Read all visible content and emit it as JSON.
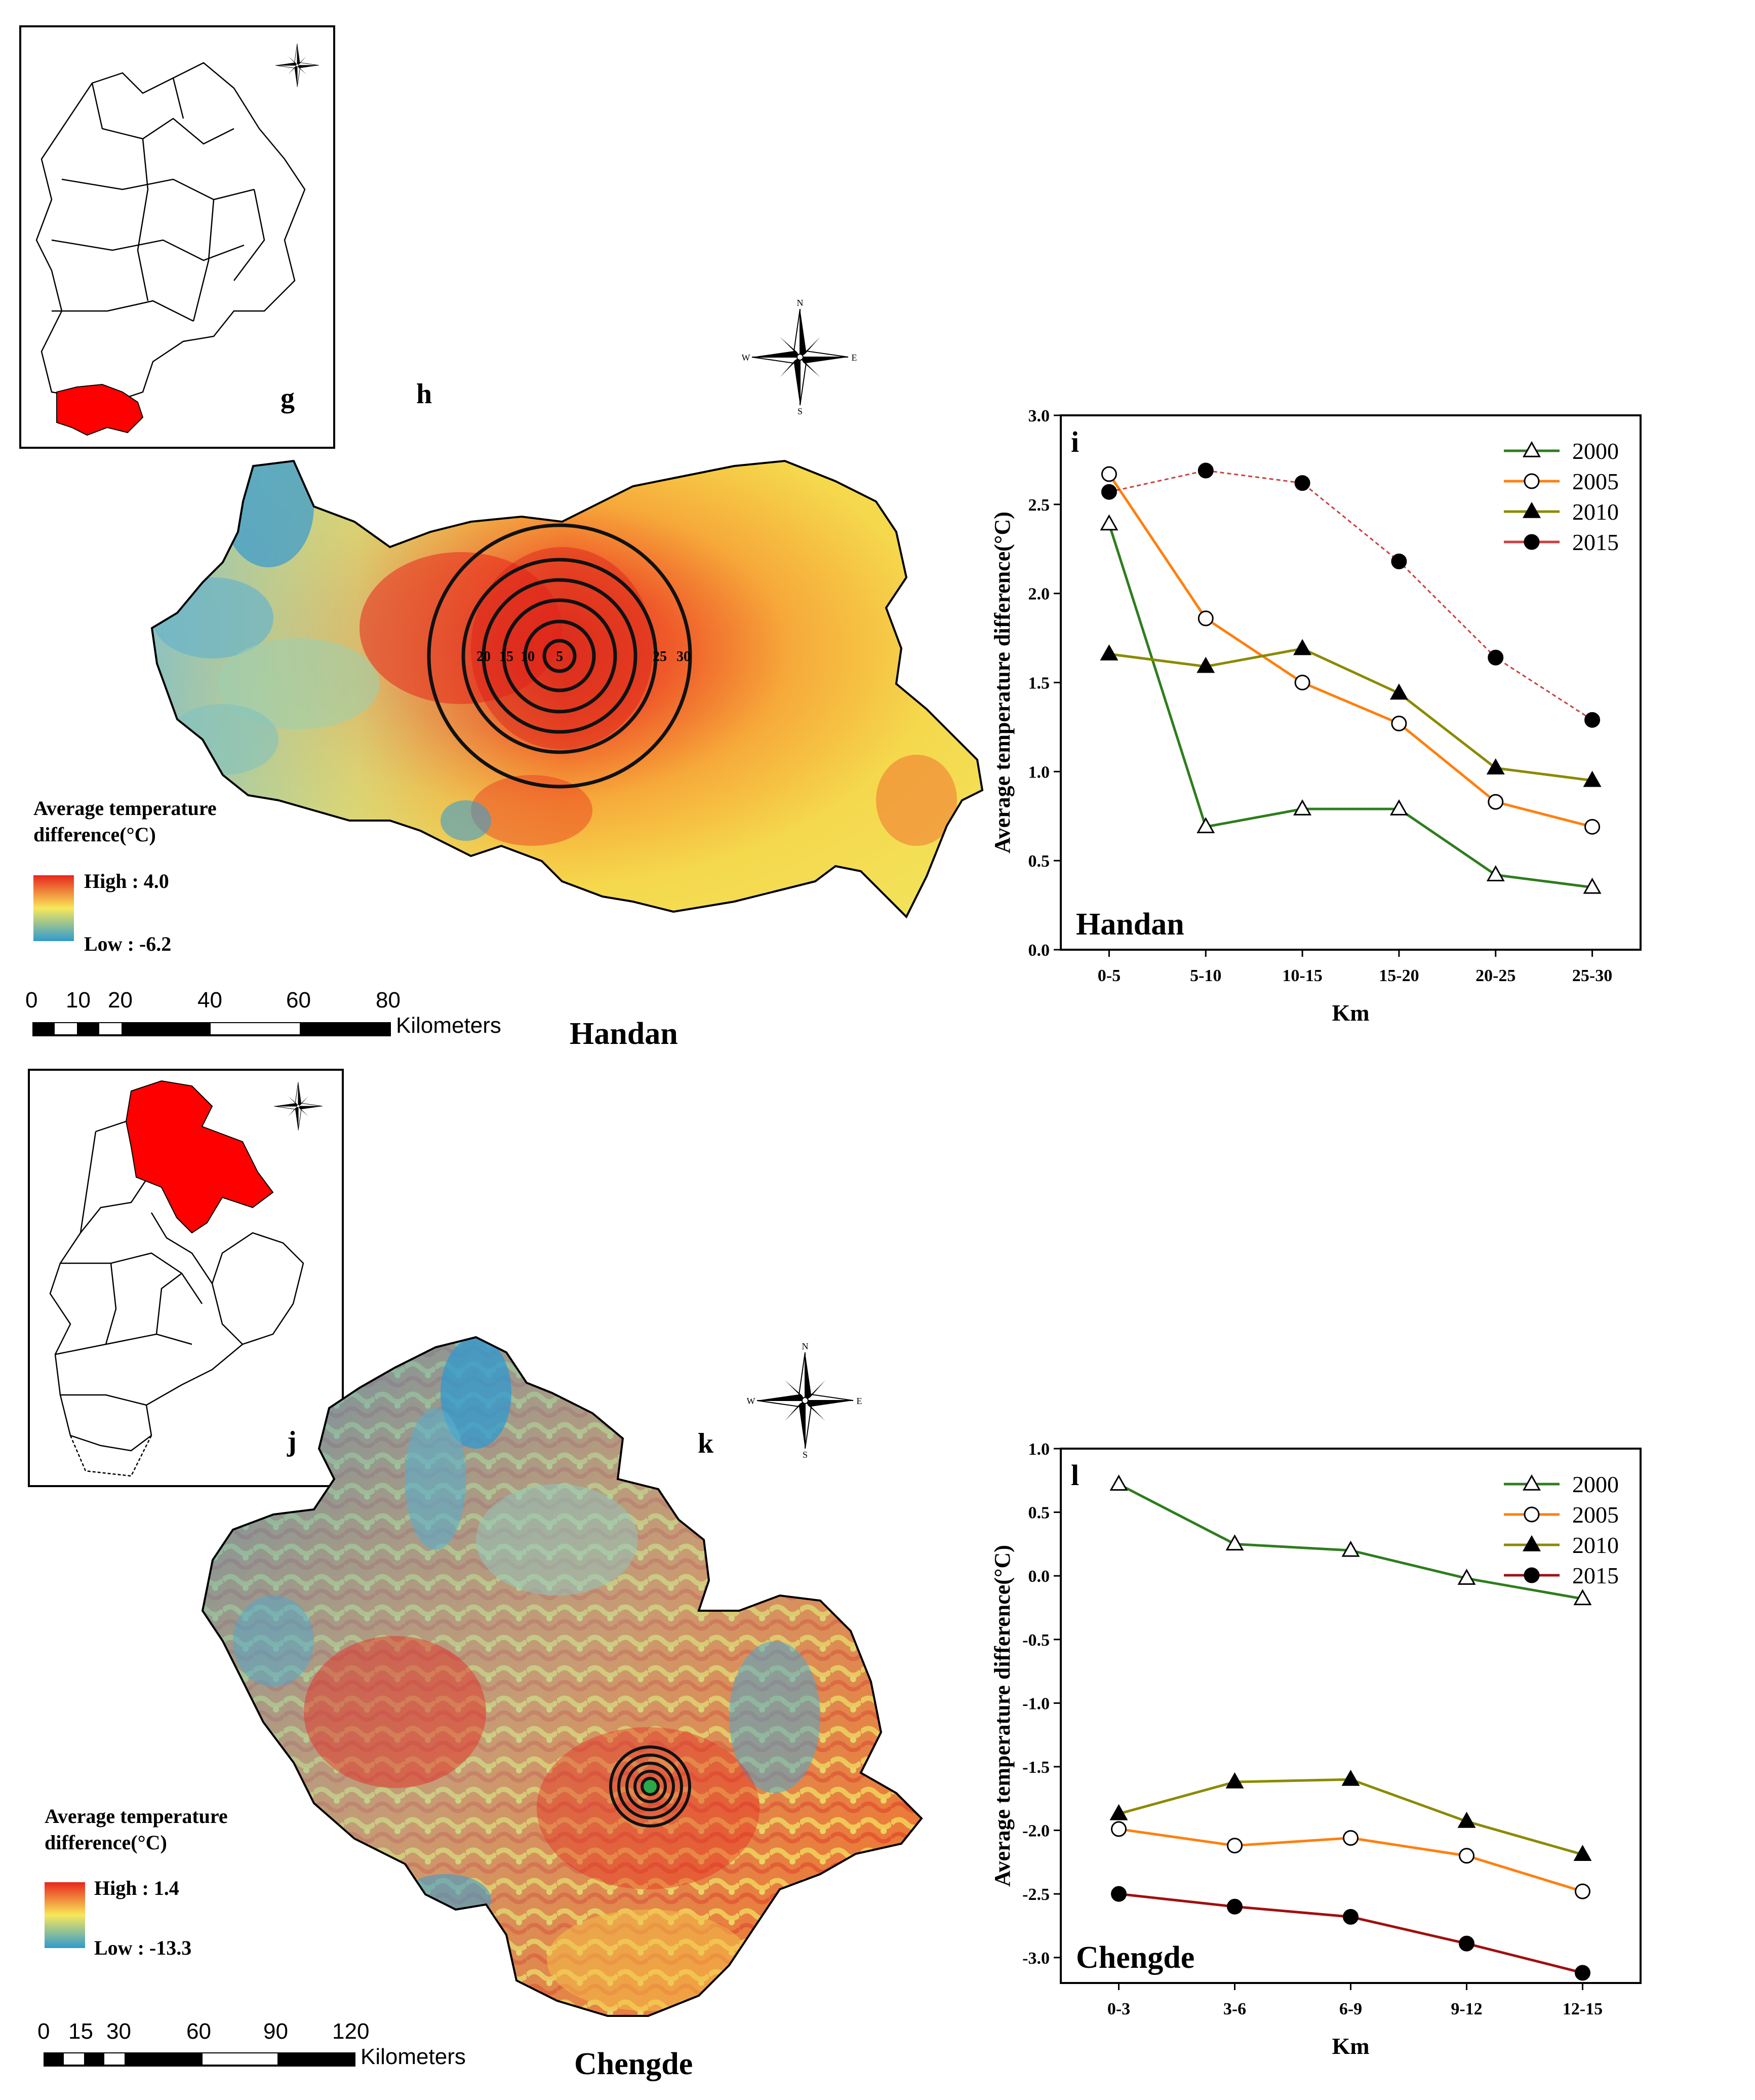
{
  "colors": {
    "high": "#e8261c",
    "mid": "#f7e85a",
    "low": "#2f9ad0",
    "province_highlight": "#ff0000",
    "s2000": "#2e7d1e",
    "s2005": "#ff7f0e",
    "s2010": "#8a8a00",
    "s2015_handan": "#c94040",
    "s2015_chengde": "#a01010"
  },
  "icons": {
    "compass": "compass-rose-icon",
    "buffer": "buffer-rings-icon",
    "scalebar": "scale-bar-icon"
  },
  "handan": {
    "inset_label": "g",
    "map_label": "h",
    "chart_label": "i",
    "city_title": "Handan",
    "chart_city": "Handan",
    "legend_title_1": "Average temperature",
    "legend_title_2": "difference(°C)",
    "legend_high": "High : 4.0",
    "legend_low": "Low : -6.2",
    "scale_ticks": [
      "0",
      "10",
      "20",
      "40",
      "60",
      "80"
    ],
    "scale_unit": "Kilometers",
    "ring_labels": [
      "20",
      "15",
      "10",
      "5",
      "25",
      "30"
    ]
  },
  "chengde": {
    "inset_label": "j",
    "map_label": "k",
    "chart_label": "l",
    "city_title": "Chengde",
    "chart_city": "Chengde",
    "legend_title_1": "Average temperature",
    "legend_title_2": "difference(°C)",
    "legend_high": "High : 1.4",
    "legend_low": "Low : -13.3",
    "scale_ticks": [
      "0",
      "15",
      "30",
      "60",
      "90",
      "120"
    ],
    "scale_unit": "Kilometers"
  },
  "compass_letters": {
    "n": "N",
    "s": "S",
    "e": "E",
    "w": "W"
  },
  "chart_data": [
    {
      "type": "line",
      "title": "Handan",
      "panel": "i",
      "xlabel": "Km",
      "ylabel": "Average temperature difference(°C)",
      "categories": [
        "0-5",
        "5-10",
        "10-15",
        "15-20",
        "20-25",
        "25-30"
      ],
      "ylim": [
        0.0,
        3.0
      ],
      "yticks": [
        0.0,
        0.5,
        1.0,
        1.5,
        2.0,
        2.5,
        3.0
      ],
      "ytick_labels": [
        "0.0",
        "0.5",
        "1.0",
        "1.5",
        "2.0",
        "2.5",
        "3.0"
      ],
      "legend_position": "top-right",
      "series": [
        {
          "name": "2000",
          "marker": "triangle-open",
          "color_key": "s2000",
          "values": [
            2.39,
            0.69,
            0.79,
            0.79,
            0.42,
            0.35
          ]
        },
        {
          "name": "2005",
          "marker": "circle-open",
          "color_key": "s2005",
          "values": [
            2.67,
            1.86,
            1.5,
            1.27,
            0.83,
            0.69
          ]
        },
        {
          "name": "2010",
          "marker": "triangle-filled",
          "color_key": "s2010",
          "values": [
            1.66,
            1.59,
            1.69,
            1.44,
            1.02,
            0.95
          ]
        },
        {
          "name": "2015",
          "marker": "circle-filled",
          "color_key": "s2015_handan",
          "dashed": true,
          "values": [
            2.57,
            2.69,
            2.62,
            2.18,
            1.64,
            1.29
          ]
        }
      ]
    },
    {
      "type": "line",
      "title": "Chengde",
      "panel": "l",
      "xlabel": "Km",
      "ylabel": "Average temperature difference(°C)",
      "categories": [
        "0-3",
        "3-6",
        "6-9",
        "9-12",
        "12-15"
      ],
      "ylim": [
        -3.2,
        1.0
      ],
      "yticks": [
        1.0,
        0.5,
        0.0,
        -0.5,
        -1.0,
        -1.5,
        -2.0,
        -2.5,
        -3.0
      ],
      "ytick_labels": [
        "1.0",
        "0.5",
        "0.0",
        "-0.5",
        "-1.0",
        "-1.5",
        "-2.0",
        "-2.5",
        "-3.0"
      ],
      "legend_position": "top-right",
      "series": [
        {
          "name": "2000",
          "marker": "triangle-open",
          "color_key": "s2000",
          "values": [
            0.72,
            0.25,
            0.2,
            -0.02,
            -0.18
          ]
        },
        {
          "name": "2005",
          "marker": "circle-open",
          "color_key": "s2005",
          "values": [
            -1.99,
            -2.12,
            -2.06,
            -2.2,
            -2.48
          ]
        },
        {
          "name": "2010",
          "marker": "triangle-filled",
          "color_key": "s2010",
          "values": [
            -1.87,
            -1.62,
            -1.6,
            -1.93,
            -2.19
          ]
        },
        {
          "name": "2015",
          "marker": "circle-filled",
          "color_key": "s2015_chengde",
          "values": [
            -2.5,
            -2.6,
            -2.68,
            -2.89,
            -3.12
          ]
        }
      ]
    }
  ]
}
